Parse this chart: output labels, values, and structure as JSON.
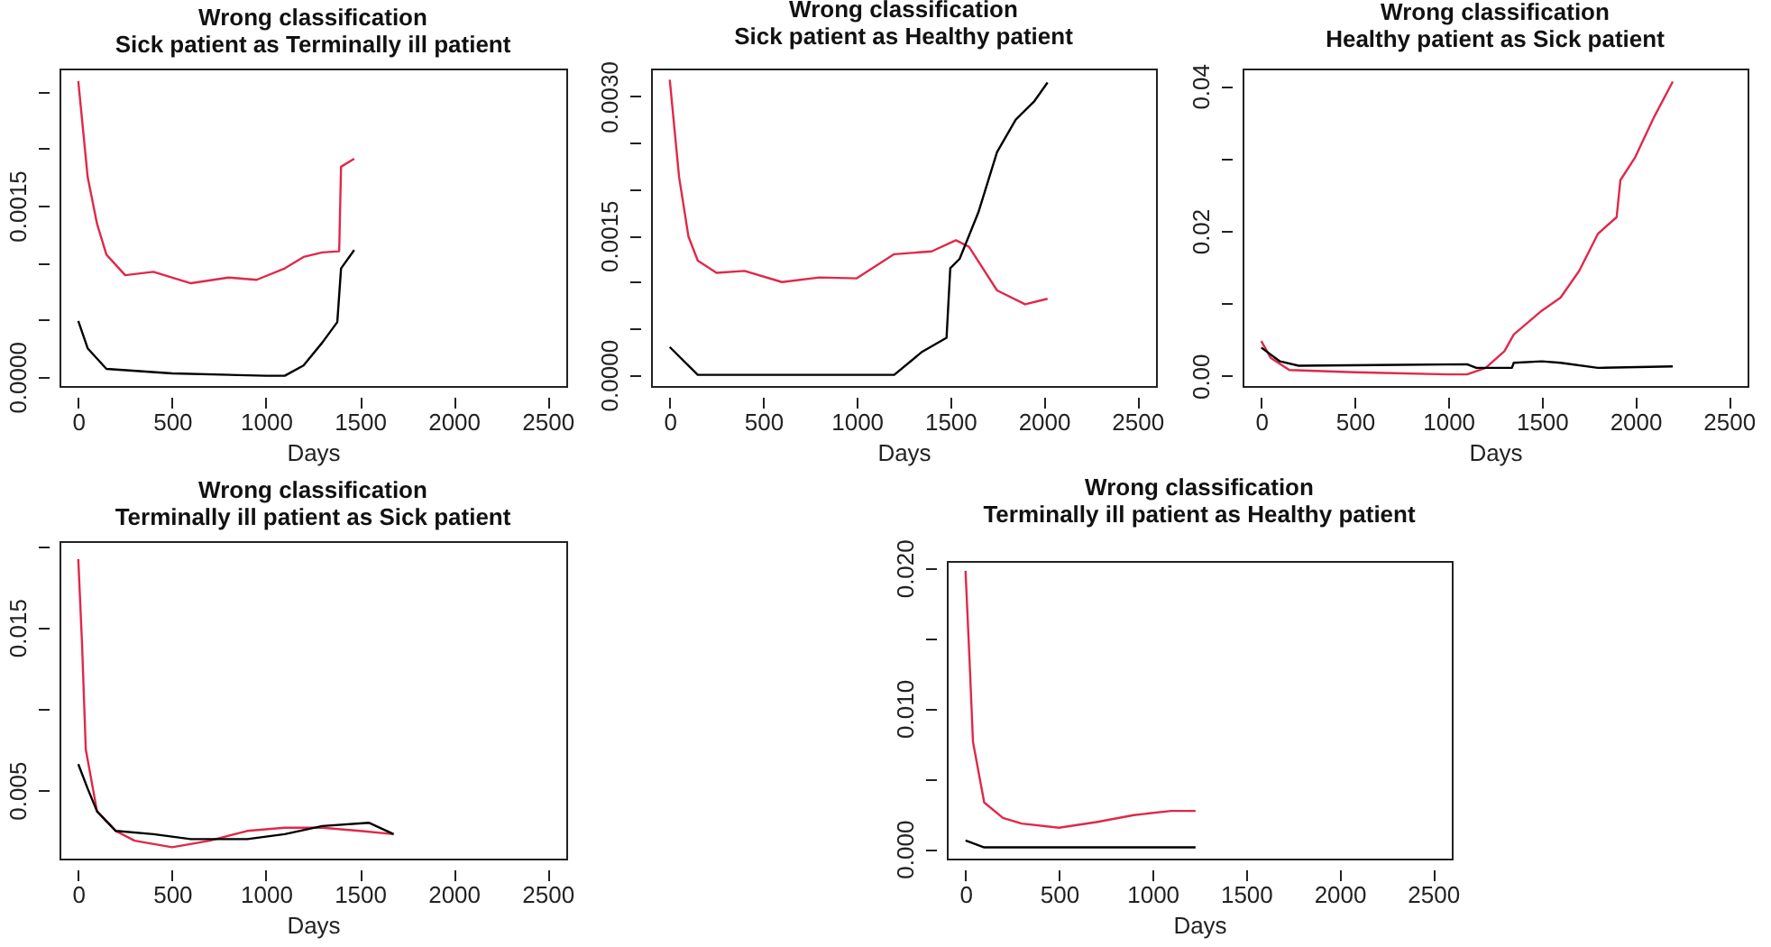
{
  "chart_data": [
    {
      "type": "line",
      "title": "Wrong classification",
      "subtitle": "Sick patient as Terminally ill patient",
      "xlabel": "Days",
      "xlim": [
        -100,
        2600
      ],
      "xticks": [
        0,
        500,
        1000,
        1500,
        2000,
        2500
      ],
      "ylim": [
        -8e-05,
        0.0027
      ],
      "yticks": [
        {
          "value": 0,
          "label": "0.0000"
        },
        {
          "value": 0.0005,
          "label": null
        },
        {
          "value": 0.001,
          "label": null
        },
        {
          "value": 0.0015,
          "label": "0.0015"
        },
        {
          "value": 0.002,
          "label": null
        },
        {
          "value": 0.0025,
          "label": null
        }
      ],
      "grid": false,
      "series": [
        {
          "color": "#e0284a",
          "x": [
            0,
            50,
            100,
            150,
            250,
            400,
            600,
            800,
            950,
            1100,
            1200,
            1300,
            1390,
            1400,
            1470
          ],
          "values": [
            0.00259,
            0.00175,
            0.00134,
            0.00107,
            0.00089,
            0.00092,
            0.00082,
            0.00087,
            0.00085,
            0.00095,
            0.00105,
            0.00109,
            0.0011,
            0.00184,
            0.00191
          ]
        },
        {
          "color": "#000000",
          "x": [
            0,
            50,
            150,
            500,
            1000,
            1100,
            1200,
            1300,
            1380,
            1400,
            1470
          ],
          "values": [
            0.00049,
            0.00025,
            7e-05,
            3e-05,
            1e-05,
            1e-05,
            0.0001,
            0.0003,
            0.00048,
            0.00095,
            0.00111
          ]
        }
      ]
    },
    {
      "type": "line",
      "title": "Wrong classification",
      "subtitle": "Sick patient as Healthy patient",
      "xlabel": "Days",
      "xlim": [
        -100,
        2600
      ],
      "xticks": [
        0,
        500,
        1000,
        1500,
        2000,
        2500
      ],
      "ylim": [
        -0.00012,
        0.0033
      ],
      "yticks": [
        {
          "value": 0,
          "label": "0.0000"
        },
        {
          "value": 0.0005,
          "label": null
        },
        {
          "value": 0.001,
          "label": null
        },
        {
          "value": 0.0015,
          "label": "0.0015"
        },
        {
          "value": 0.002,
          "label": null
        },
        {
          "value": 0.0025,
          "label": null
        },
        {
          "value": 0.003,
          "label": "0.0030"
        }
      ],
      "grid": false,
      "series": [
        {
          "color": "#e0284a",
          "x": [
            0,
            50,
            100,
            150,
            250,
            400,
            600,
            800,
            1000,
            1200,
            1400,
            1530,
            1600,
            1750,
            1900,
            2020
          ],
          "values": [
            0.00318,
            0.00213,
            0.00149,
            0.00123,
            0.0011,
            0.00112,
            0.001,
            0.00105,
            0.00104,
            0.0013,
            0.00133,
            0.00145,
            0.00138,
            0.00091,
            0.00076,
            0.00082
          ]
        },
        {
          "color": "#000000",
          "x": [
            0,
            100,
            150,
            500,
            1150,
            1200,
            1350,
            1480,
            1500,
            1550,
            1650,
            1750,
            1850,
            1950,
            2020
          ],
          "values": [
            0.0003,
            0.0001,
            0,
            0,
            0,
            0,
            0.00025,
            0.0004,
            0.00115,
            0.00125,
            0.00175,
            0.0024,
            0.00275,
            0.00295,
            0.00315
          ]
        }
      ]
    },
    {
      "type": "line",
      "title": "Wrong classification",
      "subtitle": "Healthy patient as Sick patient",
      "xlabel": "Days",
      "xlim": [
        -100,
        2600
      ],
      "xticks": [
        0,
        500,
        1000,
        1500,
        2000,
        2500
      ],
      "ylim": [
        -0.0014,
        0.0424
      ],
      "yticks": [
        {
          "value": 0,
          "label": "0.00"
        },
        {
          "value": 0.01,
          "label": null
        },
        {
          "value": 0.02,
          "label": "0.02"
        },
        {
          "value": 0.03,
          "label": null
        },
        {
          "value": 0.04,
          "label": "0.04"
        }
      ],
      "grid": false,
      "series": [
        {
          "color": "#e0284a",
          "x": [
            0,
            50,
            150,
            500,
            1000,
            1100,
            1200,
            1300,
            1350,
            1500,
            1600,
            1700,
            1800,
            1900,
            1920,
            2000,
            2100,
            2200
          ],
          "values": [
            0.0048,
            0.0025,
            0.0008,
            0.0005,
            0.0002,
            0.0002,
            0.0011,
            0.0034,
            0.0057,
            0.009,
            0.0108,
            0.0145,
            0.0196,
            0.0219,
            0.027,
            0.0302,
            0.0357,
            0.0406
          ]
        },
        {
          "color": "#000000",
          "x": [
            0,
            100,
            200,
            1100,
            1150,
            1340,
            1350,
            1500,
            1600,
            1800,
            2200
          ],
          "values": [
            0.0039,
            0.002,
            0.0014,
            0.0016,
            0.0011,
            0.0011,
            0.0018,
            0.002,
            0.0018,
            0.0011,
            0.0013
          ]
        }
      ]
    },
    {
      "type": "line",
      "title": "Wrong classification",
      "subtitle": "Terminally ill patient as Sick patient",
      "xlabel": "Days",
      "xlim": [
        -100,
        2600
      ],
      "xticks": [
        0,
        500,
        1000,
        1500,
        2000,
        2500
      ],
      "ylim": [
        0.0008,
        0.0203
      ],
      "yticks": [
        {
          "value": 0.005,
          "label": "0.005"
        },
        {
          "value": 0.01,
          "label": null
        },
        {
          "value": 0.015,
          "label": "0.015"
        },
        {
          "value": 0.02,
          "label": null
        }
      ],
      "grid": false,
      "series": [
        {
          "color": "#e0284a",
          "x": [
            0,
            20,
            40,
            100,
            200,
            300,
            500,
            700,
            900,
            1100,
            1300,
            1500,
            1680
          ],
          "values": [
            0.0192,
            0.014,
            0.0075,
            0.0037,
            0.0025,
            0.0019,
            0.0015,
            0.0019,
            0.0025,
            0.0027,
            0.0027,
            0.0025,
            0.0023
          ]
        },
        {
          "color": "#000000",
          "x": [
            0,
            50,
            100,
            200,
            400,
            600,
            900,
            1100,
            1300,
            1550,
            1680
          ],
          "values": [
            0.0066,
            0.0051,
            0.0037,
            0.0025,
            0.0023,
            0.002,
            0.002,
            0.0023,
            0.0028,
            0.003,
            0.0023
          ]
        }
      ]
    },
    {
      "type": "line",
      "title": "Wrong classification",
      "subtitle": "Terminally ill patient as Healthy patient",
      "xlabel": "Days",
      "xlim": [
        -100,
        2600
      ],
      "xticks": [
        0,
        500,
        1000,
        1500,
        2000,
        2500
      ],
      "ylim": [
        -0.0007,
        0.0205
      ],
      "yticks": [
        {
          "value": 0,
          "label": "0.000"
        },
        {
          "value": 0.005,
          "label": null
        },
        {
          "value": 0.01,
          "label": "0.010"
        },
        {
          "value": 0.015,
          "label": null
        },
        {
          "value": 0.02,
          "label": "0.020"
        }
      ],
      "grid": false,
      "series": [
        {
          "color": "#e0284a",
          "x": [
            0,
            20,
            40,
            100,
            200,
            300,
            500,
            700,
            900,
            1100,
            1230
          ],
          "values": [
            0.0198,
            0.0139,
            0.0076,
            0.0033,
            0.0022,
            0.0018,
            0.0015,
            0.0019,
            0.0024,
            0.0027,
            0.0027
          ]
        },
        {
          "color": "#000000",
          "x": [
            0,
            100,
            500,
            1230
          ],
          "values": [
            0.0006,
            0.0001,
            0.0001,
            0.0001
          ]
        }
      ]
    }
  ]
}
